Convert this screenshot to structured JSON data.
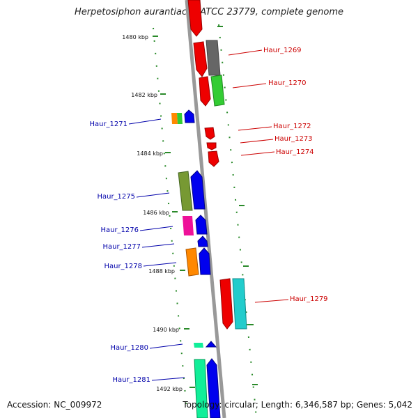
{
  "title": "Herpetosiphon aurantiacus ATCC 23779, complete genome",
  "footer": {
    "accession": "Accession: NC_009972",
    "topology": "Topology: circular; Length: 6,346,587 bp; Genes: 5,042"
  },
  "scale_labels": [
    "1480 kbp",
    "1482 kbp",
    "1484 kbp",
    "1486 kbp",
    "1488 kbp",
    "1490 kbp",
    "1492 kbp"
  ],
  "genes": [
    {
      "name": "Haur_1269",
      "strand": "forward",
      "color": "#cc0000"
    },
    {
      "name": "Haur_1270",
      "strand": "forward",
      "color": "#cc0000"
    },
    {
      "name": "Haur_1271",
      "strand": "reverse",
      "color": "#0000aa"
    },
    {
      "name": "Haur_1272",
      "strand": "forward",
      "color": "#cc0000"
    },
    {
      "name": "Haur_1273",
      "strand": "forward",
      "color": "#cc0000"
    },
    {
      "name": "Haur_1274",
      "strand": "forward",
      "color": "#cc0000"
    },
    {
      "name": "Haur_1275",
      "strand": "reverse",
      "color": "#0000aa"
    },
    {
      "name": "Haur_1276",
      "strand": "reverse",
      "color": "#0000aa"
    },
    {
      "name": "Haur_1277",
      "strand": "reverse",
      "color": "#0000aa"
    },
    {
      "name": "Haur_1278",
      "strand": "reverse",
      "color": "#0000aa"
    },
    {
      "name": "Haur_1279",
      "strand": "forward",
      "color": "#cc0000"
    },
    {
      "name": "Haur_1280",
      "strand": "reverse",
      "color": "#0000aa"
    },
    {
      "name": "Haur_1281",
      "strand": "reverse",
      "color": "#0000aa"
    }
  ]
}
